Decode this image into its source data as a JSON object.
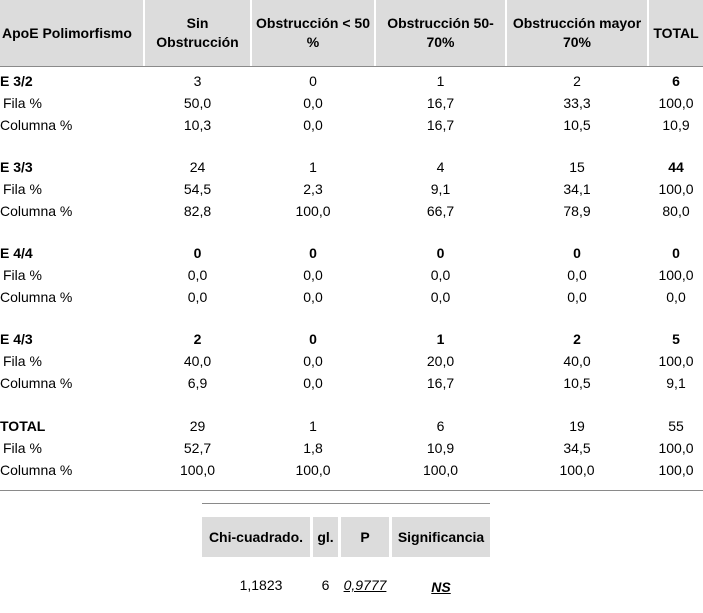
{
  "headers": [
    "ApoE Polimorfismo",
    "Sin Obstrucción",
    "Obstrucción < 50 %",
    "Obstrucción 50-70%",
    "Obstrucción mayor 70%",
    "TOTAL"
  ],
  "groups": [
    {
      "name": "E 3/2",
      "rows": [
        {
          "label": "",
          "values": [
            "3",
            "0",
            "1",
            "2",
            "6"
          ]
        },
        {
          "label": "Fila %",
          "values": [
            "50,0",
            "0,0",
            "16,7",
            "33,3",
            "100,0"
          ]
        },
        {
          "label": "Columna %",
          "values": [
            "10,3",
            "0,0",
            "16,7",
            "10,5",
            "10,9"
          ]
        }
      ]
    },
    {
      "name": "E 3/3",
      "rows": [
        {
          "label": "",
          "values": [
            "24",
            "1",
            "4",
            "15",
            "44"
          ]
        },
        {
          "label": "Fila %",
          "values": [
            "54,5",
            "2,3",
            "9,1",
            "34,1",
            "100,0"
          ]
        },
        {
          "label": "Columna %",
          "values": [
            "82,8",
            "100,0",
            "66,7",
            "78,9",
            "80,0"
          ]
        }
      ]
    },
    {
      "name": "E 4/4",
      "rows": [
        {
          "label": "",
          "values": [
            "0",
            "0",
            "0",
            "0",
            "0"
          ]
        },
        {
          "label": "Fila %",
          "values": [
            "0,0",
            "0,0",
            "0,0",
            "0,0",
            "100,0"
          ]
        },
        {
          "label": "Columna %",
          "values": [
            "0,0",
            "0,0",
            "0,0",
            "0,0",
            "0,0"
          ]
        }
      ]
    },
    {
      "name": "E  4/3",
      "rows": [
        {
          "label": "",
          "values": [
            "2",
            "0",
            "1",
            "2",
            "5"
          ]
        },
        {
          "label": "Fila %",
          "values": [
            "40,0",
            "0,0",
            "20,0",
            "40,0",
            "100,0"
          ]
        },
        {
          "label": "Columna %",
          "values": [
            "6,9",
            "0,0",
            "16,7",
            "10,5",
            "9,1"
          ]
        }
      ]
    },
    {
      "name": "TOTAL",
      "rows": [
        {
          "label": "",
          "values": [
            "29",
            "1",
            "6",
            "19",
            "55"
          ]
        },
        {
          "label": "Fila %",
          "values": [
            "52,7",
            "1,8",
            "10,9",
            "34,5",
            "100,0"
          ]
        },
        {
          "label": "Columna %",
          "values": [
            "100,0",
            "100,0",
            "100,0",
            "100,0",
            "100,0"
          ]
        }
      ]
    }
  ],
  "chi_table": {
    "headers": [
      "Chi-cuadrado.",
      "gl.",
      "P",
      "Significancia"
    ],
    "values": [
      "1,1823",
      "6",
      "0,9777",
      "NS"
    ]
  }
}
